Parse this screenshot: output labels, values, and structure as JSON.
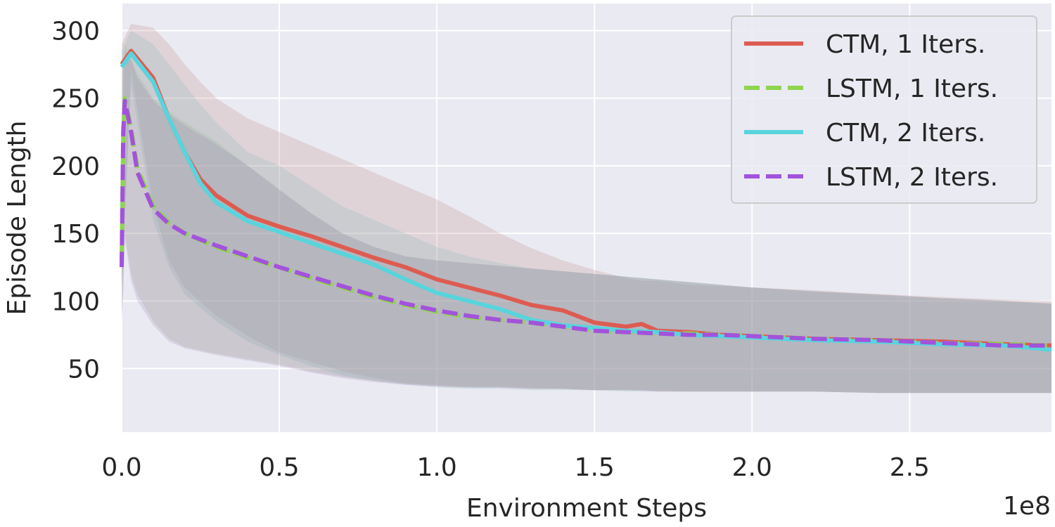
{
  "chart_data": {
    "type": "line",
    "title": "",
    "xlabel": "Environment Steps",
    "ylabel": "Episode Length",
    "x_offset_label": "1e8",
    "xlim": [
      0,
      2.95
    ],
    "ylim": [
      3,
      320
    ],
    "x_ticks": [
      0.0,
      0.5,
      1.0,
      1.5,
      2.0,
      2.5
    ],
    "x_tick_labels": [
      "0.0",
      "0.5",
      "1.0",
      "1.5",
      "2.0",
      "2.5"
    ],
    "y_ticks": [
      50,
      100,
      150,
      200,
      250,
      300
    ],
    "y_tick_labels": [
      "50",
      "100",
      "150",
      "200",
      "250",
      "300"
    ],
    "grid": true,
    "legend_position": "top-right",
    "series": [
      {
        "name": "CTM, 1 Iters.",
        "color": "#dd5c52",
        "dash": "solid",
        "x": [
          0.0,
          0.03,
          0.1,
          0.15,
          0.2,
          0.25,
          0.3,
          0.4,
          0.5,
          0.6,
          0.7,
          0.8,
          0.9,
          1.0,
          1.1,
          1.2,
          1.3,
          1.4,
          1.5,
          1.6,
          1.65,
          1.7,
          1.8,
          1.9,
          2.0,
          2.2,
          2.4,
          2.6,
          2.8,
          2.95
        ],
        "y": [
          275,
          285,
          265,
          235,
          210,
          190,
          178,
          163,
          155,
          148,
          140,
          132,
          125,
          116,
          110,
          104,
          97,
          93,
          84,
          81,
          83,
          78,
          77,
          75,
          74,
          72,
          71,
          70,
          68,
          67
        ],
        "upper": [
          290,
          305,
          302,
          290,
          275,
          262,
          250,
          235,
          225,
          215,
          205,
          195,
          185,
          175,
          163,
          150,
          139,
          130,
          123,
          117,
          115,
          115,
          112,
          111,
          110,
          108,
          105,
          103,
          101,
          100
        ],
        "lower": [
          110,
          270,
          170,
          130,
          110,
          99,
          89,
          74,
          62,
          55,
          48,
          43,
          39,
          37,
          36,
          36,
          35,
          35,
          34,
          34,
          34,
          33,
          33,
          33,
          33,
          33,
          32,
          32,
          32,
          32
        ]
      },
      {
        "name": "LSTM, 1 Iters.",
        "color": "#8fd44f",
        "dash": "dashed",
        "x": [
          0.0,
          0.005,
          0.01,
          0.03,
          0.05,
          0.1,
          0.15,
          0.2,
          0.3,
          0.4,
          0.5,
          0.6,
          0.7,
          0.8,
          0.9,
          1.0,
          1.1,
          1.2,
          1.3,
          1.4,
          1.5,
          1.6,
          1.7,
          1.8,
          1.9,
          2.0,
          2.2,
          2.4,
          2.6,
          2.8,
          2.95
        ],
        "y": [
          130,
          220,
          250,
          228,
          198,
          170,
          158,
          150,
          140,
          132,
          125,
          117,
          110,
          103,
          97,
          92,
          88,
          86,
          84,
          81,
          78,
          77,
          76,
          76,
          75,
          74,
          72,
          71,
          69,
          68,
          67
        ],
        "upper": [
          160,
          270,
          290,
          280,
          268,
          250,
          240,
          232,
          218,
          200,
          183,
          165,
          150,
          140,
          133,
          130,
          128,
          126,
          124,
          122,
          120,
          118,
          116,
          114,
          112,
          110,
          107,
          105,
          102,
          100,
          98
        ],
        "lower": [
          90,
          110,
          150,
          120,
          105,
          85,
          72,
          66,
          61,
          57,
          53,
          48,
          44,
          41,
          39,
          38,
          37,
          37,
          36,
          35,
          34,
          34,
          34,
          33,
          33,
          33,
          33,
          32,
          32,
          32,
          32
        ]
      },
      {
        "name": "CTM, 2 Iters.",
        "color": "#59d4dc",
        "dash": "solid",
        "x": [
          0.0,
          0.03,
          0.1,
          0.15,
          0.2,
          0.25,
          0.3,
          0.4,
          0.5,
          0.6,
          0.7,
          0.8,
          0.9,
          1.0,
          1.1,
          1.2,
          1.3,
          1.4,
          1.5,
          1.6,
          1.7,
          1.8,
          1.9,
          2.0,
          2.2,
          2.4,
          2.6,
          2.8,
          2.95
        ],
        "y": [
          273,
          283,
          262,
          235,
          210,
          187,
          173,
          159,
          151,
          143,
          135,
          127,
          116,
          106,
          100,
          94,
          86,
          82,
          80,
          78,
          77,
          75,
          74,
          73,
          71,
          70,
          68,
          67,
          64
        ],
        "upper": [
          285,
          300,
          290,
          275,
          260,
          245,
          232,
          210,
          200,
          185,
          170,
          160,
          150,
          140,
          133,
          128,
          124,
          122,
          120,
          118,
          116,
          114,
          112,
          110,
          107,
          104,
          102,
          100,
          98
        ],
        "lower": [
          110,
          260,
          160,
          125,
          105,
          95,
          85,
          70,
          60,
          52,
          45,
          41,
          38,
          36,
          35,
          35,
          34,
          34,
          34,
          33,
          33,
          33,
          33,
          33,
          33,
          32,
          32,
          32,
          32
        ]
      },
      {
        "name": "LSTM, 2 Iters.",
        "color": "#a352dc",
        "dash": "dashed",
        "x": [
          0.0,
          0.005,
          0.01,
          0.03,
          0.05,
          0.1,
          0.15,
          0.2,
          0.3,
          0.4,
          0.5,
          0.6,
          0.7,
          0.8,
          0.9,
          1.0,
          1.1,
          1.2,
          1.3,
          1.4,
          1.5,
          1.6,
          1.7,
          1.8,
          1.9,
          2.0,
          2.2,
          2.4,
          2.6,
          2.8,
          2.95
        ],
        "y": [
          125,
          225,
          248,
          225,
          195,
          168,
          157,
          150,
          141,
          133,
          125,
          118,
          111,
          104,
          98,
          93,
          89,
          86,
          84,
          81,
          78,
          77,
          76,
          75,
          75,
          74,
          72,
          71,
          69,
          67,
          67
        ],
        "upper": [
          150,
          265,
          285,
          278,
          265,
          248,
          238,
          230,
          216,
          200,
          182,
          165,
          150,
          140,
          133,
          130,
          128,
          126,
          124,
          122,
          120,
          118,
          116,
          114,
          112,
          110,
          107,
          105,
          102,
          100,
          98
        ],
        "lower": [
          85,
          105,
          145,
          115,
          100,
          82,
          70,
          65,
          60,
          56,
          52,
          47,
          43,
          40,
          38,
          37,
          36,
          36,
          35,
          35,
          34,
          34,
          33,
          33,
          33,
          33,
          33,
          32,
          32,
          32,
          32
        ]
      }
    ],
    "colors": {
      "plot_background": "#eaeaf2",
      "grid": "#ffffff",
      "text": "#262626",
      "legend_background": "#eaeaf2",
      "legend_border": "#cccccc"
    }
  }
}
